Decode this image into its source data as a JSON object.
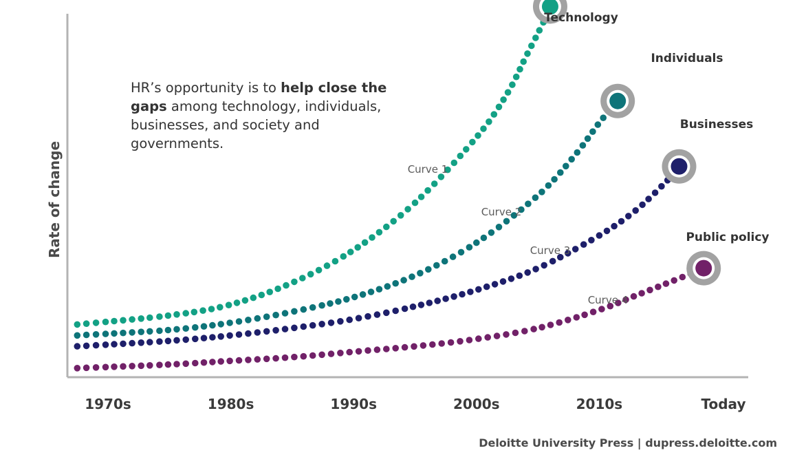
{
  "chart_data": {
    "type": "line",
    "title": "",
    "xlabel": "",
    "ylabel": "Rate of change",
    "categories": [
      "1970s",
      "1980s",
      "1990s",
      "2000s",
      "2010s",
      "Today"
    ],
    "xlim": [
      -0.4,
      5.0
    ],
    "ylim": [
      0,
      100
    ],
    "grid": false,
    "legend": "none",
    "series": [
      {
        "name": "Technology",
        "curve_label": "Curve 1",
        "color": "#13a185",
        "x": [
          -0.25,
          0.5,
          1.0,
          1.5,
          2.0,
          2.5,
          3.0,
          3.25,
          3.4,
          3.55,
          3.6
        ],
        "values": [
          14.5,
          17,
          20,
          26,
          35,
          48,
          66,
          78,
          88,
          98,
          102
        ]
      },
      {
        "name": "Individuals",
        "curve_label": "Curve 2",
        "color": "#0e7479",
        "x": [
          -0.25,
          0.5,
          1.0,
          1.5,
          2.0,
          2.5,
          3.0,
          3.5,
          3.8,
          4.0,
          4.15
        ],
        "values": [
          11.5,
          13,
          15,
          18,
          22,
          28,
          37,
          50,
          61,
          70,
          76
        ]
      },
      {
        "name": "Businesses",
        "curve_label": "Curve 3",
        "color": "#1e1f6a",
        "x": [
          -0.25,
          0.5,
          1.0,
          1.5,
          2.0,
          2.5,
          3.0,
          3.5,
          4.0,
          4.3,
          4.55,
          4.65
        ],
        "values": [
          8.5,
          10,
          11.5,
          13.5,
          16,
          19.5,
          24,
          30,
          39,
          46,
          54,
          58
        ]
      },
      {
        "name": "Public policy",
        "curve_label": "Curve 4",
        "color": "#712168",
        "x": [
          -0.25,
          0.5,
          1.0,
          1.5,
          2.0,
          2.5,
          3.0,
          3.5,
          4.0,
          4.3,
          4.6,
          4.85
        ],
        "values": [
          2.5,
          3.5,
          4.5,
          5.5,
          7,
          8.5,
          10.5,
          13.5,
          18.5,
          22.5,
          26.5,
          30
        ]
      }
    ],
    "annotation": {
      "text_before": "HR’s opportunity is to ",
      "text_bold": "help close the gaps",
      "text_after": " among technology, individuals, businesses, and society and governments."
    }
  },
  "footer": "Deloitte University Press  |  dupress.deloitte.com"
}
